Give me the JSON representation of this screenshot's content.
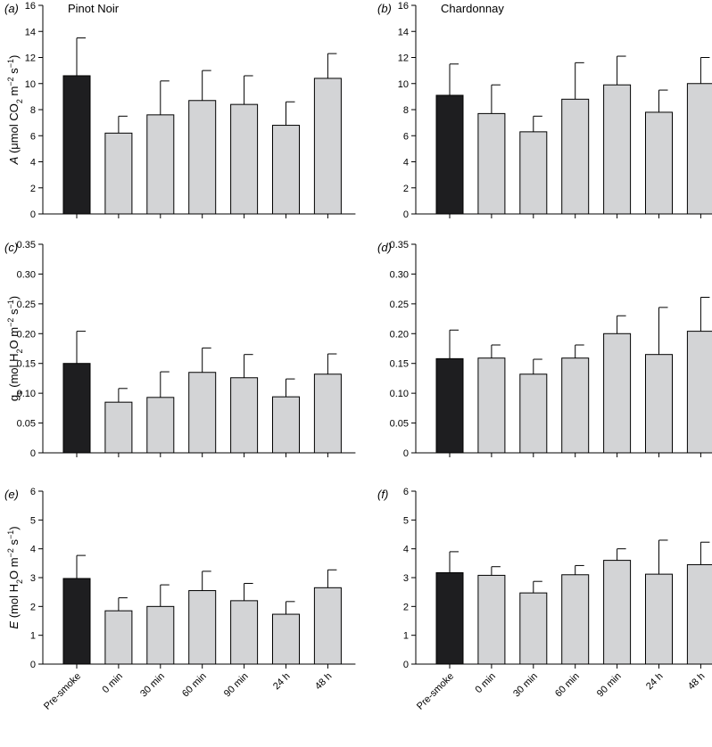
{
  "colors": {
    "pre_smoke": "#1e1e20",
    "treatment": "#d3d4d6",
    "axis": "#000000"
  },
  "chart_data": [
    {
      "type": "bar",
      "panel": "(a)",
      "title": "Pinot Noir",
      "ylabel_parts": [
        "A",
        " (μmol CO",
        "2",
        " m",
        "−2",
        " s",
        "−1",
        ")"
      ],
      "categories": [
        "Pre-smoke",
        "0 min",
        "30 min",
        "60 min",
        "90 min",
        "24 h",
        "48 h"
      ],
      "values": [
        10.6,
        6.2,
        7.6,
        8.7,
        8.4,
        6.8,
        10.4
      ],
      "errors": [
        2.9,
        1.3,
        2.6,
        2.3,
        2.2,
        1.8,
        1.9
      ],
      "ylim": [
        0,
        16
      ],
      "yticks": [
        "0",
        "2",
        "4",
        "6",
        "8",
        "10",
        "12",
        "14",
        "16"
      ]
    },
    {
      "type": "bar",
      "panel": "(b)",
      "title": "Chardonnay",
      "ylabel_parts": [],
      "categories": [
        "Pre-smoke",
        "0 min",
        "30 min",
        "60 min",
        "90 min",
        "24 h",
        "48 h"
      ],
      "values": [
        9.1,
        7.7,
        6.3,
        8.8,
        9.9,
        7.8,
        10.0
      ],
      "errors": [
        2.4,
        2.2,
        1.2,
        2.8,
        2.2,
        1.7,
        2.0
      ],
      "ylim": [
        0,
        16
      ],
      "yticks": [
        "0",
        "2",
        "4",
        "6",
        "8",
        "10",
        "12",
        "14",
        "16"
      ]
    },
    {
      "type": "bar",
      "panel": "(c)",
      "title": "",
      "ylabel_parts": [
        "g",
        "s",
        " (mol H",
        "2",
        "O m",
        "−2",
        " s",
        "−1",
        ")"
      ],
      "categories": [
        "Pre-smoke",
        "0 min",
        "30 min",
        "60 min",
        "90 min",
        "24 h",
        "48 h"
      ],
      "values": [
        0.15,
        0.085,
        0.093,
        0.135,
        0.126,
        0.094,
        0.132
      ],
      "errors": [
        0.054,
        0.023,
        0.043,
        0.041,
        0.039,
        0.03,
        0.034
      ],
      "ylim": [
        0,
        0.35
      ],
      "yticks": [
        "0",
        "0.05",
        "0.10",
        "0.15",
        "0.20",
        "0.25",
        "0.30",
        "0.35"
      ]
    },
    {
      "type": "bar",
      "panel": "(d)",
      "title": "",
      "ylabel_parts": [],
      "categories": [
        "Pre-smoke",
        "0 min",
        "30 min",
        "60 min",
        "90 min",
        "24 h",
        "48 h"
      ],
      "values": [
        0.158,
        0.159,
        0.132,
        0.159,
        0.2,
        0.165,
        0.204
      ],
      "errors": [
        0.048,
        0.022,
        0.025,
        0.022,
        0.03,
        0.079,
        0.057
      ],
      "ylim": [
        0,
        0.35
      ],
      "yticks": [
        "0",
        "0.05",
        "0.10",
        "0.15",
        "0.20",
        "0.25",
        "0.30",
        "0.35"
      ]
    },
    {
      "type": "bar",
      "panel": "(e)",
      "title": "",
      "ylabel_parts": [
        "E",
        " (mol H",
        "2",
        "O m",
        "−2",
        " s",
        "−1",
        ")"
      ],
      "categories": [
        "Pre-smoke",
        "0 min",
        "30 min",
        "60 min",
        "90 min",
        "24 h",
        "48 h"
      ],
      "values": [
        2.97,
        1.85,
        2.0,
        2.55,
        2.2,
        1.73,
        2.65
      ],
      "errors": [
        0.8,
        0.45,
        0.75,
        0.67,
        0.6,
        0.44,
        0.62
      ],
      "ylim": [
        0,
        6
      ],
      "yticks": [
        "0",
        "1",
        "2",
        "3",
        "4",
        "5",
        "6"
      ]
    },
    {
      "type": "bar",
      "panel": "(f)",
      "title": "",
      "ylabel_parts": [],
      "categories": [
        "Pre-smoke",
        "0 min",
        "30 min",
        "60 min",
        "90 min",
        "24 h",
        "48 h"
      ],
      "values": [
        3.17,
        3.08,
        2.47,
        3.1,
        3.6,
        3.12,
        3.45
      ],
      "errors": [
        0.73,
        0.3,
        0.4,
        0.32,
        0.4,
        1.18,
        0.78
      ],
      "ylim": [
        0,
        6
      ],
      "yticks": [
        "0",
        "1",
        "2",
        "3",
        "4",
        "5",
        "6"
      ]
    }
  ]
}
